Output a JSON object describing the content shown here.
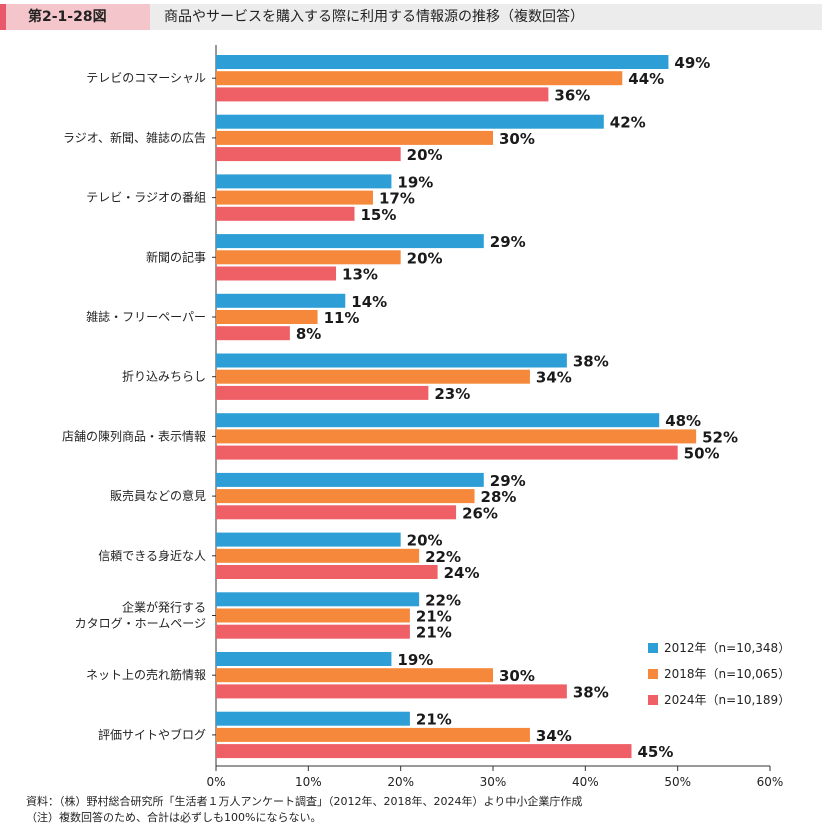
{
  "header": {
    "figure_number": "第2-1-28図",
    "title": "商品やサービスを購入する際に利用する情報源の推移（複数回答）"
  },
  "chart_data": {
    "type": "bar",
    "orientation": "horizontal",
    "categories": [
      [
        "テレビのコマーシャル"
      ],
      [
        "ラジオ、新聞、雑誌の広告"
      ],
      [
        "テレビ・ラジオの番組"
      ],
      [
        "新聞の記事"
      ],
      [
        "雑誌・フリーペーパー"
      ],
      [
        "折り込みちらし"
      ],
      [
        "店舗の陳列商品・表示情報"
      ],
      [
        "販売員などの意見"
      ],
      [
        "信頼できる身近な人"
      ],
      [
        "企業が発行する",
        "カタログ・ホームページ"
      ],
      [
        "ネット上の売れ筋情報"
      ],
      [
        "評価サイトやブログ"
      ]
    ],
    "series": [
      {
        "name": "2012年（n=10,348）",
        "color": "#2e9fd6",
        "values": [
          49,
          42,
          19,
          29,
          14,
          38,
          48,
          29,
          20,
          22,
          19,
          21
        ]
      },
      {
        "name": "2018年（n=10,065）",
        "color": "#f5883a",
        "values": [
          44,
          30,
          17,
          20,
          11,
          34,
          52,
          28,
          22,
          21,
          30,
          34
        ]
      },
      {
        "name": "2024年（n=10,189）",
        "color": "#ee5f66",
        "values": [
          36,
          20,
          15,
          13,
          8,
          23,
          50,
          26,
          24,
          21,
          38,
          45
        ]
      }
    ],
    "value_suffix": "%",
    "xlim": [
      0,
      60
    ],
    "xticks": [
      "0%",
      "10%",
      "20%",
      "30%",
      "40%",
      "50%",
      "60%"
    ],
    "grid": false,
    "legend_position": "bottom-right"
  },
  "footer": {
    "source": "資料：（株）野村総合研究所「生活者１万人アンケート調査」（2012年、2018年、2024年）より中小企業庁作成",
    "note": "（注）複数回答のため、合計は必ずしも100%にならない。"
  }
}
